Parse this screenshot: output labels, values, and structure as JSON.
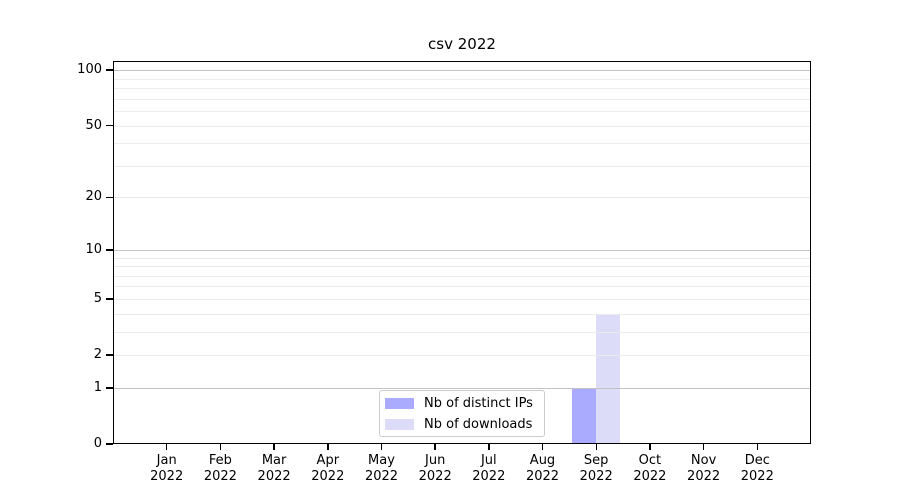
{
  "chart_data": {
    "type": "bar",
    "title": "csv 2022",
    "categories": [
      "Jan",
      "Feb",
      "Mar",
      "Apr",
      "May",
      "Jun",
      "Jul",
      "Aug",
      "Sep",
      "Oct",
      "Nov",
      "Dec"
    ],
    "category_year": "2022",
    "xlabel": "",
    "ylabel": "",
    "series": [
      {
        "name": "Nb of distinct IPs",
        "color": "#aaaaff",
        "values": [
          0,
          0,
          0,
          0,
          0,
          0,
          0,
          0,
          1,
          0,
          0,
          0
        ]
      },
      {
        "name": "Nb of downloads",
        "color": "#dcdcf9",
        "values": [
          0,
          0,
          0,
          0,
          0,
          0,
          0,
          0,
          4,
          0,
          0,
          0
        ]
      }
    ],
    "yscale": "log1p",
    "ylim": [
      0,
      112
    ],
    "yticks": [
      0,
      1,
      2,
      5,
      10,
      20,
      50,
      100
    ],
    "major_gridlines": [
      1,
      10,
      100
    ],
    "minor_gridlines": [
      2,
      3,
      4,
      5,
      6,
      7,
      8,
      9,
      20,
      30,
      40,
      50,
      60,
      70,
      80,
      90
    ],
    "grid": "horizontal",
    "legend_position": "lower center"
  },
  "colors": {
    "background": "#ffffff",
    "axis": "#000000",
    "major_grid": "#c3c3c3",
    "minor_grid": "#ebebeb",
    "legend_border": "#cccccc",
    "bar_distinct_ips": "#aaaaff",
    "bar_downloads": "#dcdcf9"
  }
}
